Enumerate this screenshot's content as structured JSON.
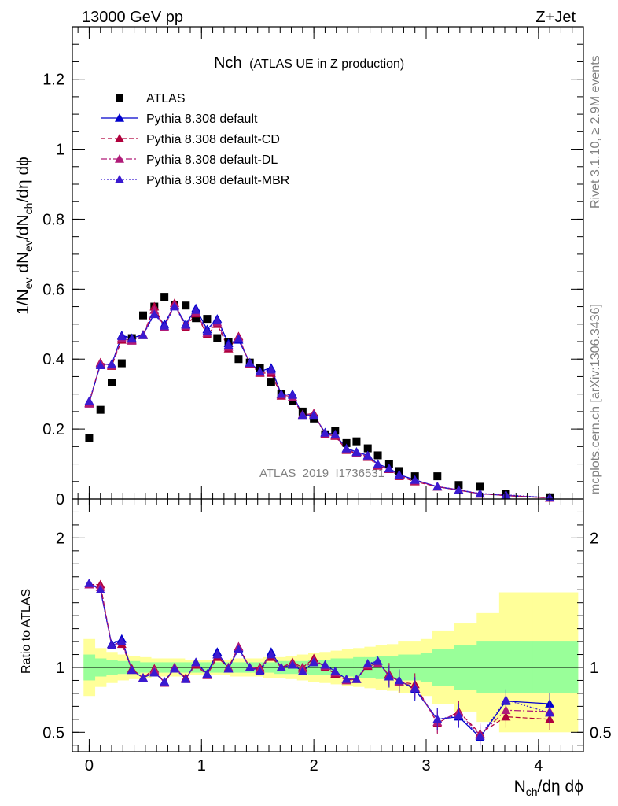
{
  "header": {
    "left": "13000 GeV pp",
    "right": "Z+Jet"
  },
  "side_labels": {
    "rivet": "Rivet 3.1.10, ≥ 2.9M events",
    "mcplots": "mcplots.cern.ch [arXiv:1306.3436]"
  },
  "watermark": "ATLAS_2019_I1736531",
  "chart_data": [
    {
      "type": "scatter",
      "panel": "main",
      "title_main": "Nch",
      "title_sub": "(ATLAS UE in Z production)",
      "ylabel": "1/N_ev dN_ev/dN_ch/dη dϕ",
      "ylim": [
        0,
        1.35
      ],
      "xlim": [
        -0.15,
        4.4
      ],
      "yticks": [
        {
          "v": 0,
          "label": "0"
        },
        {
          "v": 0.2,
          "label": "0.2"
        },
        {
          "v": 0.4,
          "label": "0.4"
        },
        {
          "v": 0.6,
          "label": "0.6"
        },
        {
          "v": 0.8,
          "label": "0.8"
        },
        {
          "v": 1.0,
          "label": "1"
        },
        {
          "v": 1.2,
          "label": "1.2"
        }
      ],
      "legend": [
        {
          "name": "ATLAS",
          "color": "#000000",
          "marker": "square",
          "dash": ""
        },
        {
          "name": "Pythia 8.308 default",
          "color": "#0000cc",
          "marker": "triangle",
          "dash": ""
        },
        {
          "name": "Pythia 8.308 default-CD",
          "color": "#b0003c",
          "marker": "triangle",
          "dash": "6,3"
        },
        {
          "name": "Pythia 8.308 default-DL",
          "color": "#b01a78",
          "marker": "triangle",
          "dash": "8,3,2,3"
        },
        {
          "name": "Pythia 8.308 default-MBR",
          "color": "#3a1ad0",
          "marker": "triangle",
          "dash": "2,2"
        }
      ],
      "atlas": {
        "x": [
          0.0,
          0.1,
          0.2,
          0.29,
          0.38,
          0.48,
          0.58,
          0.67,
          0.76,
          0.86,
          0.95,
          1.05,
          1.14,
          1.24,
          1.33,
          1.43,
          1.52,
          1.62,
          1.71,
          1.81,
          1.9,
          2.0,
          2.1,
          2.19,
          2.29,
          2.38,
          2.48,
          2.57,
          2.67,
          2.76,
          2.9,
          3.1,
          3.29,
          3.48,
          3.71,
          4.1
        ],
        "y": [
          0.175,
          0.255,
          0.333,
          0.388,
          0.46,
          0.525,
          0.55,
          0.578,
          0.555,
          0.553,
          0.517,
          0.515,
          0.46,
          0.45,
          0.4,
          0.39,
          0.375,
          0.335,
          0.3,
          0.28,
          0.25,
          0.23,
          0.185,
          0.195,
          0.16,
          0.165,
          0.145,
          0.125,
          0.1,
          0.08,
          0.065,
          0.065,
          0.04,
          0.035,
          0.015,
          0.005
        ]
      },
      "mc": [
        {
          "name": "Pythia 8.308 default",
          "color": "#0000cc",
          "y": [
            0.275,
            0.385,
            0.385,
            0.468,
            0.46,
            0.47,
            0.53,
            0.5,
            0.555,
            0.5,
            0.545,
            0.485,
            0.515,
            0.445,
            0.455,
            0.39,
            0.365,
            0.375,
            0.3,
            0.3,
            0.24,
            0.24,
            0.19,
            0.185,
            0.145,
            0.135,
            0.125,
            0.1,
            0.088,
            0.07,
            0.055,
            0.035,
            0.025,
            0.015,
            0.01,
            0.004
          ]
        },
        {
          "name": "Pythia 8.308 default-CD",
          "color": "#b0003c",
          "y": [
            0.275,
            0.39,
            0.38,
            0.455,
            0.455,
            0.468,
            0.55,
            0.49,
            0.56,
            0.49,
            0.53,
            0.47,
            0.5,
            0.43,
            0.465,
            0.385,
            0.36,
            0.36,
            0.295,
            0.29,
            0.24,
            0.245,
            0.185,
            0.18,
            0.14,
            0.13,
            0.12,
            0.095,
            0.085,
            0.065,
            0.05,
            0.035,
            0.025,
            0.015,
            0.01,
            0.003
          ]
        },
        {
          "name": "Pythia 8.308 default-DL",
          "color": "#b01a78",
          "y": [
            0.272,
            0.388,
            0.382,
            0.46,
            0.452,
            0.47,
            0.54,
            0.492,
            0.555,
            0.495,
            0.535,
            0.475,
            0.505,
            0.435,
            0.462,
            0.387,
            0.362,
            0.365,
            0.298,
            0.292,
            0.242,
            0.243,
            0.187,
            0.182,
            0.142,
            0.132,
            0.122,
            0.097,
            0.086,
            0.067,
            0.052,
            0.036,
            0.026,
            0.015,
            0.011,
            0.003
          ]
        },
        {
          "name": "Pythia 8.308 default-MBR",
          "color": "#3a1ad0",
          "y": [
            0.28,
            0.382,
            0.386,
            0.465,
            0.458,
            0.468,
            0.528,
            0.495,
            0.55,
            0.498,
            0.54,
            0.48,
            0.51,
            0.44,
            0.458,
            0.389,
            0.364,
            0.37,
            0.3,
            0.297,
            0.24,
            0.24,
            0.189,
            0.184,
            0.144,
            0.134,
            0.124,
            0.099,
            0.087,
            0.069,
            0.054,
            0.036,
            0.026,
            0.016,
            0.012,
            0.004
          ]
        }
      ]
    },
    {
      "type": "scatter",
      "panel": "ratio",
      "ylabel": "Ratio to ATLAS",
      "xlabel": "N_ch/dη dϕ",
      "ylim": [
        0.35,
        2.3
      ],
      "xlim": [
        -0.15,
        4.4
      ],
      "yticks": [
        {
          "v": 0.5,
          "label": "0.5"
        },
        {
          "v": 1.0,
          "label": "1"
        },
        {
          "v": 2.0,
          "label": "2"
        }
      ],
      "xticks": [
        {
          "v": 0,
          "label": "0"
        },
        {
          "v": 1,
          "label": "1"
        },
        {
          "v": 2,
          "label": "2"
        },
        {
          "v": 3,
          "label": "3"
        },
        {
          "v": 4,
          "label": "4"
        }
      ],
      "bands": {
        "edges": [
          -0.05,
          0.05,
          0.15,
          0.25,
          0.35,
          0.45,
          0.55,
          0.65,
          0.75,
          0.85,
          0.95,
          1.05,
          1.15,
          1.25,
          1.35,
          1.45,
          1.55,
          1.65,
          1.75,
          1.85,
          1.95,
          2.05,
          2.15,
          2.25,
          2.35,
          2.45,
          2.55,
          2.65,
          2.75,
          2.95,
          3.05,
          3.25,
          3.45,
          3.65,
          3.95,
          4.35
        ],
        "yellow_lo": [
          0.78,
          0.85,
          0.88,
          0.9,
          0.91,
          0.92,
          0.93,
          0.93,
          0.93,
          0.94,
          0.94,
          0.94,
          0.94,
          0.93,
          0.93,
          0.93,
          0.92,
          0.92,
          0.91,
          0.9,
          0.89,
          0.88,
          0.87,
          0.86,
          0.85,
          0.84,
          0.83,
          0.82,
          0.8,
          0.78,
          0.72,
          0.66,
          0.58,
          0.5,
          0.5
        ],
        "yellow_hi": [
          1.22,
          1.15,
          1.12,
          1.1,
          1.09,
          1.08,
          1.07,
          1.07,
          1.07,
          1.06,
          1.06,
          1.06,
          1.06,
          1.07,
          1.07,
          1.07,
          1.08,
          1.08,
          1.09,
          1.1,
          1.11,
          1.12,
          1.13,
          1.14,
          1.15,
          1.16,
          1.17,
          1.18,
          1.2,
          1.22,
          1.28,
          1.34,
          1.42,
          1.58,
          1.58
        ],
        "green_lo": [
          0.9,
          0.93,
          0.94,
          0.95,
          0.95,
          0.96,
          0.96,
          0.96,
          0.96,
          0.96,
          0.96,
          0.96,
          0.96,
          0.96,
          0.96,
          0.96,
          0.96,
          0.95,
          0.95,
          0.95,
          0.94,
          0.94,
          0.93,
          0.93,
          0.92,
          0.92,
          0.91,
          0.91,
          0.9,
          0.89,
          0.86,
          0.83,
          0.8,
          0.8,
          0.8
        ],
        "green_hi": [
          1.1,
          1.07,
          1.06,
          1.05,
          1.05,
          1.04,
          1.04,
          1.04,
          1.04,
          1.04,
          1.04,
          1.04,
          1.04,
          1.04,
          1.04,
          1.04,
          1.04,
          1.05,
          1.05,
          1.05,
          1.06,
          1.06,
          1.07,
          1.07,
          1.08,
          1.08,
          1.09,
          1.09,
          1.1,
          1.11,
          1.14,
          1.17,
          1.2,
          1.2,
          1.2
        ]
      },
      "series": [
        {
          "name": "Pythia 8.308 default",
          "color": "#0000cc",
          "y": [
            1.65,
            1.6,
            1.18,
            1.22,
            0.98,
            0.92,
            0.96,
            0.89,
            1.0,
            0.91,
            1.04,
            0.95,
            1.12,
            0.99,
            1.15,
            1.0,
            0.98,
            1.12,
            1.0,
            1.02,
            0.97,
            1.04,
            1.02,
            0.97,
            0.91,
            0.91,
            1.02,
            1.05,
            0.93,
            0.9,
            0.83,
            0.6,
            0.62,
            0.46,
            0.74,
            0.72
          ]
        },
        {
          "name": "Pythia 8.308 default-CD",
          "color": "#b0003c",
          "y": [
            1.64,
            1.64,
            1.17,
            1.18,
            0.99,
            0.92,
            0.99,
            0.88,
            1.0,
            0.92,
            1.02,
            0.94,
            1.08,
            1.0,
            1.16,
            1.0,
            1.0,
            1.08,
            1.0,
            1.04,
            1.0,
            1.07,
            1.0,
            0.95,
            0.9,
            0.91,
            1.01,
            1.03,
            0.95,
            0.89,
            0.87,
            0.57,
            0.66,
            0.49,
            0.62,
            0.6
          ]
        },
        {
          "name": "Pythia 8.308 default-DL",
          "color": "#b01a78",
          "y": [
            1.64,
            1.62,
            1.17,
            1.2,
            0.98,
            0.92,
            0.98,
            0.88,
            1.0,
            0.91,
            1.03,
            0.94,
            1.1,
            1.0,
            1.16,
            1.0,
            0.99,
            1.1,
            1.0,
            1.03,
            0.99,
            1.05,
            1.01,
            0.96,
            0.9,
            0.91,
            1.02,
            1.03,
            0.94,
            0.89,
            0.85,
            0.58,
            0.65,
            0.48,
            0.67,
            0.66
          ]
        },
        {
          "name": "Pythia 8.308 default-MBR",
          "color": "#3a1ad0",
          "y": [
            1.65,
            1.6,
            1.17,
            1.2,
            0.98,
            0.92,
            0.96,
            0.89,
            0.99,
            0.91,
            1.04,
            0.95,
            1.1,
            0.99,
            1.14,
            1.0,
            0.97,
            1.1,
            1.0,
            1.02,
            0.97,
            1.04,
            1.02,
            0.97,
            0.91,
            0.91,
            1.03,
            1.05,
            0.93,
            0.9,
            0.84,
            0.6,
            0.63,
            0.47,
            0.75,
            0.65
          ]
        }
      ]
    }
  ]
}
